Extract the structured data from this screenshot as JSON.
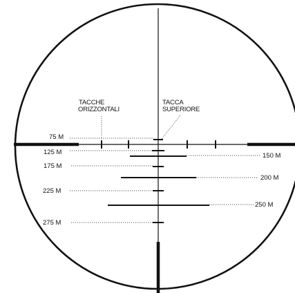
{
  "labels": {
    "horizontal_ticks": [
      "TACCHE",
      "ORIZZONTALI"
    ],
    "top_tick": [
      "TACCA",
      "SUPERIORE"
    ]
  },
  "ranges_left": [
    "75 M",
    "125 M",
    "175 M",
    "225 M",
    "275 M"
  ],
  "ranges_right": [
    "150 M",
    "200 M",
    "250 M"
  ]
}
